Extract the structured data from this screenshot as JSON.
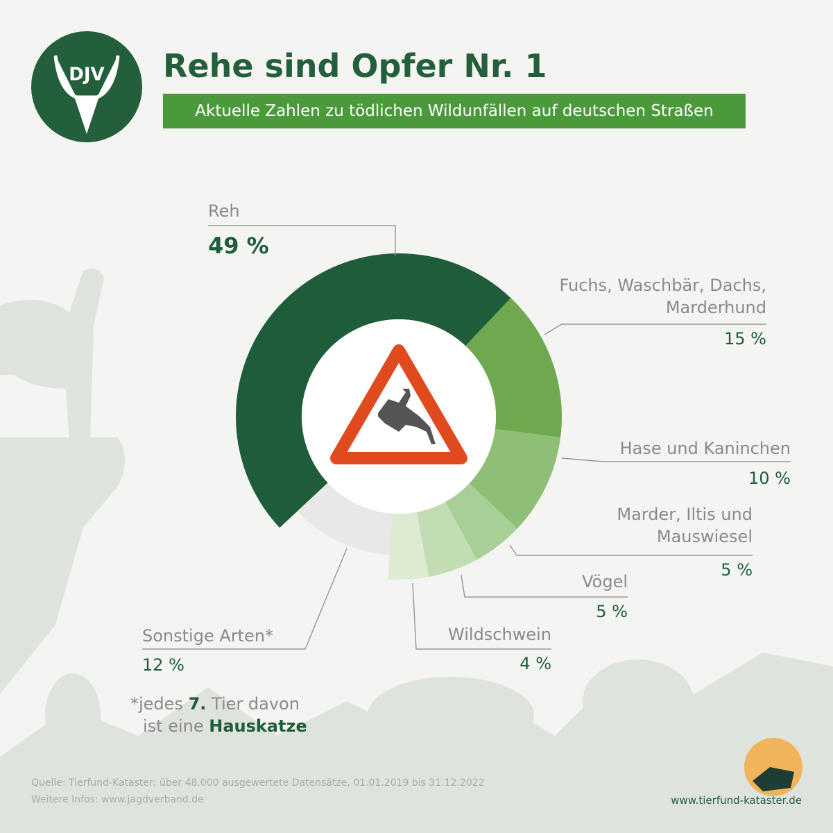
{
  "logo": "DJV",
  "chart_data": {
    "type": "pie",
    "title": "Rehe sind Opfer Nr. 1",
    "subtitle": "Aktuelle Zahlen zu tödlichen Wildunfällen auf deutschen Straßen",
    "categories": [
      "Reh",
      "Fuchs, Waschbär, Dachs, Marderhund",
      "Hase und Kaninchen",
      "Marder, Iltis und Mauswiesel",
      "Vögel",
      "Wildschwein",
      "Sonstige Arten*"
    ],
    "values": [
      49,
      15,
      10,
      5,
      5,
      4,
      12
    ],
    "value_labels": [
      "49 %",
      "15 %",
      "10 %",
      "5 %",
      "5 %",
      "4 %",
      "12 %"
    ],
    "colors": [
      "#1e5c3a",
      "#6fa84f",
      "#8fbf76",
      "#a8cf95",
      "#c2ddb3",
      "#dcebd2",
      "#e8e8e8"
    ]
  },
  "footnote": {
    "parts": [
      "*jedes ",
      "7.",
      " Tier davon",
      "ist eine ",
      "Hauskatze"
    ]
  },
  "source": "Quelle: Tierfund-Kataster; über 48.000 ausgewertete Datensätze, 01.01.2019 bis 31.12.2022",
  "more_info": "Weitere Infos: www.jagdverband.de",
  "website": "www.tierfund-kataster.de"
}
